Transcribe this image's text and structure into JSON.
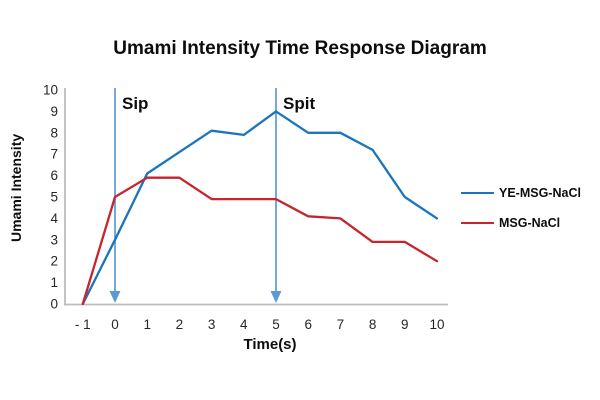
{
  "chart_data": {
    "type": "line",
    "title": "Umami Intensity Time Response Diagram",
    "xlabel": "Time(s)",
    "ylabel": "Umami Intensity",
    "xlim": [
      -1,
      10
    ],
    "ylim": [
      0,
      10
    ],
    "grid": false,
    "legend_position": "right",
    "x_tick_values": [
      -1,
      0,
      1,
      2,
      3,
      4,
      5,
      6,
      7,
      8,
      9,
      10
    ],
    "x_tick_labels": [
      "- 1",
      "0",
      "1",
      "2",
      "3",
      "4",
      "5",
      "6",
      "7",
      "8",
      "9",
      "10"
    ],
    "y_tick_values": [
      0,
      1,
      2,
      3,
      4,
      5,
      6,
      7,
      8,
      9,
      10
    ],
    "y_tick_labels": [
      "0",
      "1",
      "2",
      "3",
      "4",
      "5",
      "6",
      "7",
      "8",
      "9",
      "10"
    ],
    "series": [
      {
        "name": "YE-MSG-NaCl",
        "color": "#1b74bc",
        "x": [
          -1,
          0,
          1,
          2,
          3,
          4,
          5,
          6,
          7,
          8,
          9,
          10
        ],
        "values": [
          0,
          3,
          6.1,
          7.1,
          8.1,
          7.9,
          9,
          8,
          8,
          7.2,
          5,
          4
        ]
      },
      {
        "name": "MSG-NaCl",
        "color": "#c3262c",
        "x": [
          -1,
          0,
          1,
          2,
          3,
          4,
          5,
          6,
          7,
          8,
          9,
          10
        ],
        "values": [
          0,
          5,
          5.9,
          5.9,
          4.9,
          4.9,
          4.9,
          4.1,
          4,
          2.9,
          2.9,
          2
        ]
      }
    ],
    "annotations": [
      {
        "label": "Sip",
        "x": 0,
        "arrow": "vertical-down"
      },
      {
        "label": "Spit",
        "x": 5,
        "arrow": "vertical-down"
      }
    ]
  },
  "colors": {
    "axis_line": "#bdbdbd",
    "tick_text": "#262626",
    "annotation_arrow": "#5b9bd5",
    "annotation_text": "#0d0d0d"
  }
}
